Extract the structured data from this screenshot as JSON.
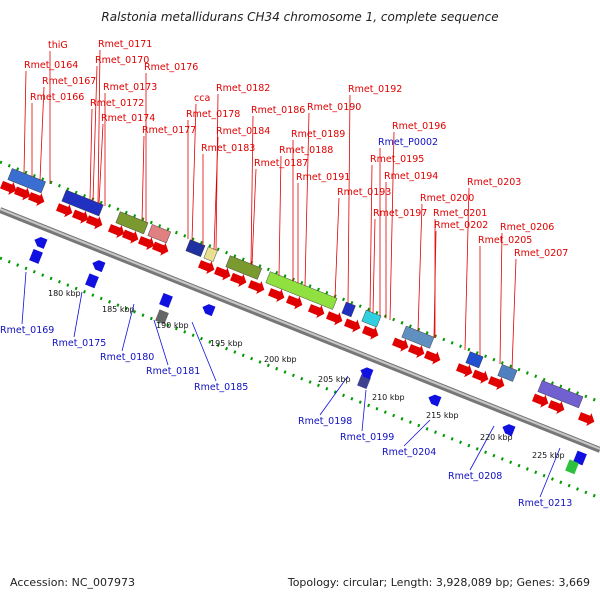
{
  "title": "Ralstonia metallidurans CH34 chromosome 1, complete sequence",
  "accession": "Accession: NC_007973",
  "summary": "Topology: circular; Length: 3,928,089 bp; Genes: 3,669",
  "colors": {
    "forward_gene": "#e00000",
    "reverse_gene": "#1010e0",
    "backbone": "#999999",
    "dots": "#009900",
    "plasmid_label": "#f0a0c0"
  },
  "forward_labels": [
    {
      "text": "thiG"
    },
    {
      "text": "Rmet_0164"
    },
    {
      "text": "Rmet_0167"
    },
    {
      "text": "Rmet_0166"
    },
    {
      "text": "Rmet_0171"
    },
    {
      "text": "Rmet_0170"
    },
    {
      "text": "Rmet_0173"
    },
    {
      "text": "Rmet_0172"
    },
    {
      "text": "Rmet_0174"
    },
    {
      "text": "Rmet_0176"
    },
    {
      "text": "Rmet_0177"
    },
    {
      "text": "cca"
    },
    {
      "text": "Rmet_0178"
    },
    {
      "text": "Rmet_0182"
    },
    {
      "text": "Rmet_0184"
    },
    {
      "text": "Rmet_0183"
    },
    {
      "text": "Rmet_0186"
    },
    {
      "text": "Rmet_0190"
    },
    {
      "text": "Rmet_0189"
    },
    {
      "text": "Rmet_0188"
    },
    {
      "text": "Rmet_0187"
    },
    {
      "text": "Rmet_0191"
    },
    {
      "text": "Rmet_0192"
    },
    {
      "text": "Rmet_0193"
    },
    {
      "text": "Rmet_0194"
    },
    {
      "text": "Rmet_0195"
    },
    {
      "text": "Rmet_0196"
    },
    {
      "text": "Rmet_P0002"
    },
    {
      "text": "Rmet_0197"
    },
    {
      "text": "Rmet_0200"
    },
    {
      "text": "Rmet_0201"
    },
    {
      "text": "Rmet_0202"
    },
    {
      "text": "Rmet_0203"
    },
    {
      "text": "Rmet_0205"
    },
    {
      "text": "Rmet_0206"
    },
    {
      "text": "Rmet_0207"
    }
  ],
  "reverse_labels": [
    {
      "text": "Rmet_0169"
    },
    {
      "text": "Rmet_0175"
    },
    {
      "text": "Rmet_0180"
    },
    {
      "text": "Rmet_0181"
    },
    {
      "text": "Rmet_0185"
    },
    {
      "text": "Rmet_0198"
    },
    {
      "text": "Rmet_0199"
    },
    {
      "text": "Rmet_0204"
    },
    {
      "text": "Rmet_0208"
    },
    {
      "text": "Rmet_0213"
    }
  ],
  "ticks": [
    "180 kbp",
    "185 kbp",
    "190 kbp",
    "195 kbp",
    "200 kbp",
    "205 kbp",
    "210 kbp",
    "215 kbp",
    "220 kbp",
    "225 kbp"
  ]
}
